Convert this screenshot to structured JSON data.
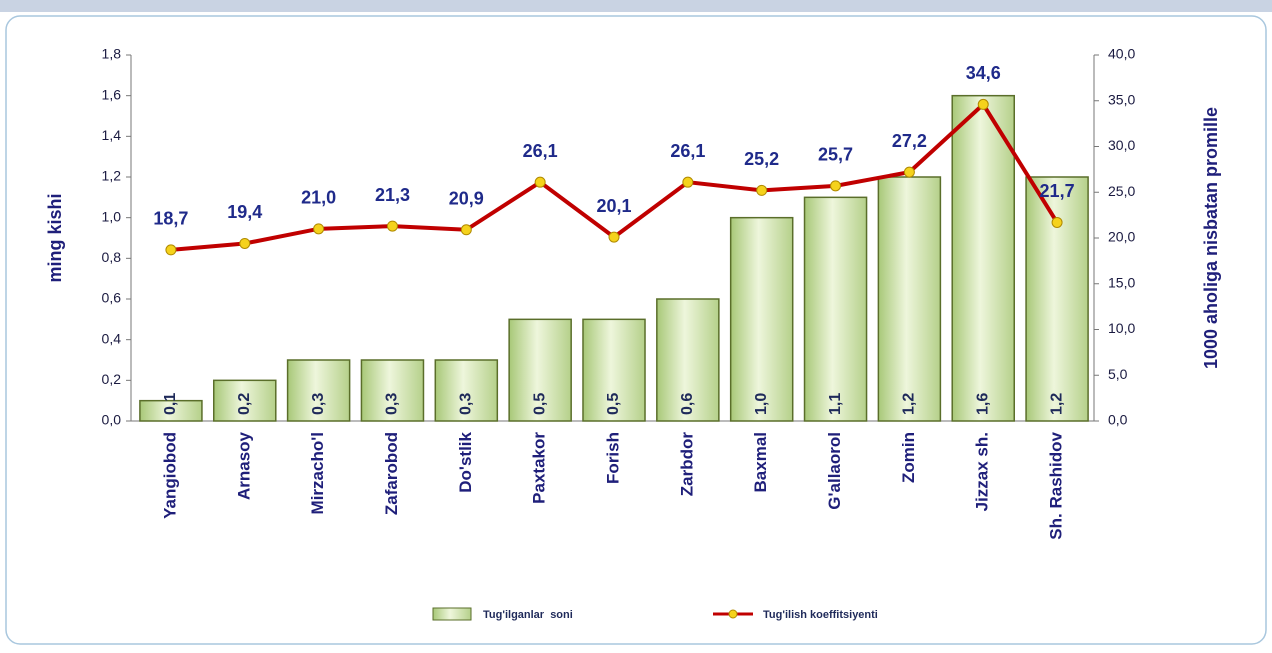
{
  "chart_data": {
    "type": "bar",
    "categories": [
      "Yangiobod",
      "Arnasoy",
      "Mirzacho'l",
      "Zafarobod",
      "Do'stlik",
      "Paxtakor",
      "Forish",
      "Zarbdor",
      "Baxmal",
      "G'allaorol",
      "Zomin",
      "Jizzax sh.",
      "Sh. Rashidov"
    ],
    "series": [
      {
        "name": "Tug'ilganlar  soni",
        "type": "bar",
        "color": "#c9e0a0",
        "values": [
          0.1,
          0.2,
          0.3,
          0.3,
          0.3,
          0.5,
          0.5,
          0.6,
          1.0,
          1.1,
          1.2,
          1.6,
          1.2
        ],
        "value_labels": [
          "0,1",
          "0,2",
          "0,3",
          "0,3",
          "0,3",
          "0,5",
          "0,5",
          "0,6",
          "1,0",
          "1,1",
          "1,2",
          "1,6",
          "1,2"
        ]
      },
      {
        "name": "Tug'ilish koeffitsiyenti",
        "type": "line",
        "axis": "y2",
        "color": "#c00000",
        "values": [
          18.7,
          19.4,
          21.0,
          21.3,
          20.9,
          26.1,
          20.1,
          26.1,
          25.2,
          25.7,
          27.2,
          34.6,
          21.7
        ],
        "value_labels": [
          "18,7",
          "19,4",
          "21,0",
          "21,3",
          "20,9",
          "26,1",
          "20,1",
          "26,1",
          "25,2",
          "25,7",
          "27,2",
          "34,6",
          "21,7"
        ]
      }
    ],
    "ylabel": "ming kishi",
    "y2label": "1000 aholiga nisbatan promille",
    "ylim": [
      0,
      1.8
    ],
    "yticks": [
      {
        "value": 0,
        "label": "0,0"
      },
      {
        "value": 0.2,
        "label": "0,2"
      },
      {
        "value": 0.4,
        "label": "0,4"
      },
      {
        "value": 0.6,
        "label": "0,6"
      },
      {
        "value": 0.8,
        "label": "0,8"
      },
      {
        "value": 1.0,
        "label": "1,0"
      },
      {
        "value": 1.2,
        "label": "1,2"
      },
      {
        "value": 1.4,
        "label": "1,4"
      },
      {
        "value": 1.6,
        "label": "1,6"
      },
      {
        "value": 1.8,
        "label": "1,8"
      }
    ],
    "y2lim": [
      0,
      40
    ],
    "y2ticks": [
      {
        "value": 0,
        "label": "0,0"
      },
      {
        "value": 5,
        "label": "5,0"
      },
      {
        "value": 10,
        "label": "10,0"
      },
      {
        "value": 15,
        "label": "15,0"
      },
      {
        "value": 20,
        "label": "20,0"
      },
      {
        "value": 25,
        "label": "25,0"
      },
      {
        "value": 30,
        "label": "30,0"
      },
      {
        "value": 35,
        "label": "35,0"
      },
      {
        "value": 40,
        "label": "40,0"
      }
    ],
    "legend": "bottom"
  }
}
